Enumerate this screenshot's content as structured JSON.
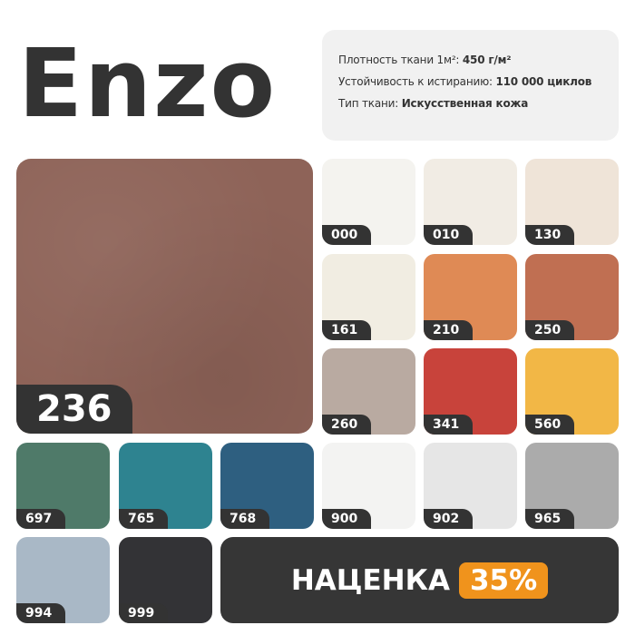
{
  "title": "Enzo",
  "info": {
    "density_label": "Плотность ткани 1м²:",
    "density_value": "450 г/м²",
    "abrasion_label": "Устойчивость к истиранию:",
    "abrasion_value": "110 000 циклов",
    "type_label": "Тип ткани:",
    "type_value": "Искусственная кожа"
  },
  "featured": {
    "code": "236",
    "color": "#8e6358"
  },
  "swatches": [
    {
      "code": "000",
      "color": "#f4f3ef"
    },
    {
      "code": "010",
      "color": "#f1ece4"
    },
    {
      "code": "130",
      "color": "#efe4d8"
    },
    {
      "code": "161",
      "color": "#f1ede2"
    },
    {
      "code": "210",
      "color": "#df8a55"
    },
    {
      "code": "250",
      "color": "#c06f52"
    },
    {
      "code": "260",
      "color": "#b9aaa1"
    },
    {
      "code": "341",
      "color": "#c8433b"
    },
    {
      "code": "560",
      "color": "#f2b746"
    },
    {
      "code": "697",
      "color": "#4f7a69"
    },
    {
      "code": "765",
      "color": "#2e8390"
    },
    {
      "code": "768",
      "color": "#2e5f80"
    },
    {
      "code": "900",
      "color": "#f3f3f2"
    },
    {
      "code": "902",
      "color": "#e6e6e6"
    },
    {
      "code": "965",
      "color": "#ababab"
    },
    {
      "code": "994",
      "color": "#a9b8c6"
    },
    {
      "code": "999",
      "color": "#333336"
    }
  ],
  "markup": {
    "label": "НАЦЕНКА",
    "percent": "35%",
    "accent": "#f0931c"
  }
}
